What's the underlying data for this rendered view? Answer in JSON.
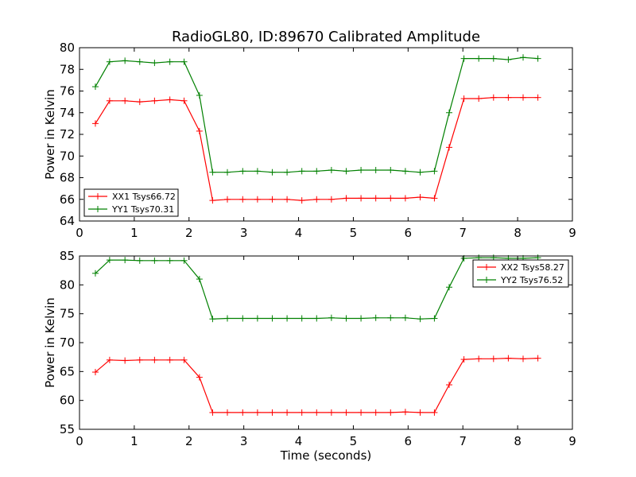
{
  "figure": {
    "title": "RadioGL80, ID:89670 Calibrated Amplitude"
  },
  "colors": {
    "xx": "#ff0000",
    "yy": "#008000",
    "axes": "#000000",
    "background": "#ffffff"
  },
  "chart_data": [
    {
      "type": "line",
      "marker": "plus",
      "title": "RadioGL80, ID:89670 Calibrated Amplitude",
      "xlabel": "",
      "ylabel": "Power in Kelvin",
      "xlim": [
        0,
        9
      ],
      "ylim": [
        64,
        80
      ],
      "xticks": [
        0,
        1,
        2,
        3,
        4,
        5,
        6,
        7,
        8,
        9
      ],
      "yticks": [
        64,
        66,
        68,
        70,
        72,
        74,
        76,
        78,
        80
      ],
      "grid": false,
      "legend_position": "lower-left",
      "x": [
        0.28,
        0.56,
        0.84,
        1.12,
        1.4,
        1.68,
        1.96,
        2.24,
        2.45,
        2.73,
        3.01,
        3.29,
        3.57,
        3.85,
        4.13,
        4.41,
        4.69,
        4.97,
        5.25,
        5.53,
        5.81,
        6.09,
        6.37,
        6.65,
        6.93,
        7.21,
        7.49,
        7.77,
        8.05,
        8.33
      ],
      "series": [
        {
          "name": "XX1 Tsys66.72",
          "color": "#ff0000",
          "x": [
            0.29,
            0.55,
            0.83,
            1.1,
            1.37,
            1.65,
            1.91,
            2.19,
            2.43,
            2.7,
            2.98,
            3.25,
            3.52,
            3.79,
            4.06,
            4.33,
            4.6,
            4.87,
            5.14,
            5.41,
            5.68,
            5.95,
            6.22,
            6.48,
            6.75,
            7.02,
            7.29,
            7.56,
            7.83,
            8.1,
            8.37
          ],
          "values": [
            73.0,
            75.1,
            75.1,
            75.0,
            75.1,
            75.2,
            75.1,
            72.3,
            65.9,
            66.0,
            66.0,
            66.0,
            66.0,
            66.0,
            65.9,
            66.0,
            66.0,
            66.1,
            66.1,
            66.1,
            66.1,
            66.1,
            66.2,
            66.1,
            70.8,
            75.3,
            75.3,
            75.4,
            75.4,
            75.4,
            75.4
          ]
        },
        {
          "name": "YY1 Tsys70.31",
          "color": "#008000",
          "x": [
            0.29,
            0.55,
            0.83,
            1.1,
            1.37,
            1.65,
            1.91,
            2.19,
            2.43,
            2.7,
            2.98,
            3.25,
            3.52,
            3.79,
            4.06,
            4.33,
            4.6,
            4.87,
            5.14,
            5.41,
            5.68,
            5.95,
            6.22,
            6.48,
            6.75,
            7.02,
            7.29,
            7.56,
            7.83,
            8.1,
            8.37
          ],
          "values": [
            76.4,
            78.7,
            78.8,
            78.7,
            78.6,
            78.7,
            78.7,
            75.6,
            68.5,
            68.5,
            68.6,
            68.6,
            68.5,
            68.5,
            68.6,
            68.6,
            68.7,
            68.6,
            68.7,
            68.7,
            68.7,
            68.6,
            68.5,
            68.6,
            74.0,
            79.0,
            79.0,
            79.0,
            78.9,
            79.1,
            79.0
          ]
        }
      ]
    },
    {
      "type": "line",
      "marker": "plus",
      "title": "",
      "xlabel": "Time (seconds)",
      "ylabel": "Power in Kelvin",
      "xlim": [
        0,
        9
      ],
      "ylim": [
        55,
        85
      ],
      "xticks": [
        0,
        1,
        2,
        3,
        4,
        5,
        6,
        7,
        8,
        9
      ],
      "yticks": [
        55,
        60,
        65,
        70,
        75,
        80,
        85
      ],
      "grid": false,
      "legend_position": "upper-right",
      "series": [
        {
          "name": "XX2 Tsys58.27",
          "color": "#ff0000",
          "x": [
            0.29,
            0.55,
            0.83,
            1.1,
            1.37,
            1.65,
            1.91,
            2.19,
            2.43,
            2.7,
            2.98,
            3.25,
            3.52,
            3.79,
            4.06,
            4.33,
            4.6,
            4.87,
            5.14,
            5.41,
            5.68,
            5.95,
            6.22,
            6.48,
            6.75,
            7.02,
            7.29,
            7.56,
            7.83,
            8.1,
            8.37
          ],
          "values": [
            64.9,
            67.0,
            66.9,
            67.0,
            67.0,
            67.0,
            67.0,
            64.0,
            57.9,
            57.9,
            57.9,
            57.9,
            57.9,
            57.9,
            57.9,
            57.9,
            57.9,
            57.9,
            57.9,
            57.9,
            57.9,
            58.0,
            57.9,
            57.9,
            62.7,
            67.1,
            67.2,
            67.2,
            67.3,
            67.2,
            67.3
          ]
        },
        {
          "name": "YY2 Tsys76.52",
          "color": "#008000",
          "x": [
            0.29,
            0.55,
            0.83,
            1.1,
            1.37,
            1.65,
            1.91,
            2.19,
            2.43,
            2.7,
            2.98,
            3.25,
            3.52,
            3.79,
            4.06,
            4.33,
            4.6,
            4.87,
            5.14,
            5.41,
            5.68,
            5.95,
            6.22,
            6.48,
            6.75,
            7.02,
            7.29,
            7.56,
            7.83,
            8.1,
            8.37
          ],
          "values": [
            82.0,
            84.3,
            84.3,
            84.2,
            84.2,
            84.2,
            84.2,
            81.0,
            74.1,
            74.2,
            74.2,
            74.2,
            74.2,
            74.2,
            74.2,
            74.2,
            74.3,
            74.2,
            74.2,
            74.3,
            74.3,
            74.3,
            74.1,
            74.2,
            79.6,
            84.6,
            84.7,
            84.7,
            84.6,
            84.6,
            84.7
          ]
        }
      ]
    }
  ]
}
